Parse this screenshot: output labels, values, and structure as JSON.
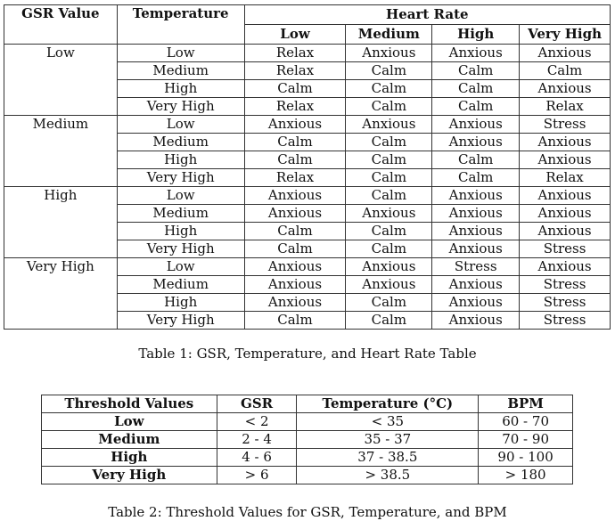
{
  "table1": {
    "headers": {
      "gsr": "GSR Value",
      "temperature": "Temperature",
      "heart_rate": "Heart Rate",
      "hr_levels": [
        "Low",
        "Medium",
        "High",
        "Very High"
      ]
    },
    "groups": [
      {
        "gsr": "Low",
        "rows": [
          {
            "temp": "Low",
            "values": [
              "Relax",
              "Anxious",
              "Anxious",
              "Anxious"
            ]
          },
          {
            "temp": "Medium",
            "values": [
              "Relax",
              "Calm",
              "Calm",
              "Calm"
            ]
          },
          {
            "temp": "High",
            "values": [
              "Calm",
              "Calm",
              "Calm",
              "Anxious"
            ]
          },
          {
            "temp": "Very High",
            "values": [
              "Relax",
              "Calm",
              "Calm",
              "Relax"
            ]
          }
        ]
      },
      {
        "gsr": "Medium",
        "rows": [
          {
            "temp": "Low",
            "values": [
              "Anxious",
              "Anxious",
              "Anxious",
              "Stress"
            ]
          },
          {
            "temp": "Medium",
            "values": [
              "Calm",
              "Calm",
              "Anxious",
              "Anxious"
            ]
          },
          {
            "temp": "High",
            "values": [
              "Calm",
              "Calm",
              "Calm",
              "Anxious"
            ]
          },
          {
            "temp": "Very High",
            "values": [
              "Relax",
              "Calm",
              "Calm",
              "Relax"
            ]
          }
        ]
      },
      {
        "gsr": "High",
        "rows": [
          {
            "temp": "Low",
            "values": [
              "Anxious",
              "Calm",
              "Anxious",
              "Anxious"
            ]
          },
          {
            "temp": "Medium",
            "values": [
              "Anxious",
              "Anxious",
              "Anxious",
              "Anxious"
            ]
          },
          {
            "temp": "High",
            "values": [
              "Calm",
              "Calm",
              "Anxious",
              "Anxious"
            ]
          },
          {
            "temp": "Very High",
            "values": [
              "Calm",
              "Calm",
              "Anxious",
              "Stress"
            ]
          }
        ]
      },
      {
        "gsr": "Very High",
        "rows": [
          {
            "temp": "Low",
            "values": [
              "Anxious",
              "Anxious",
              "Stress",
              "Anxious"
            ]
          },
          {
            "temp": "Medium",
            "values": [
              "Anxious",
              "Anxious",
              "Anxious",
              "Stress"
            ]
          },
          {
            "temp": "High",
            "values": [
              "Anxious",
              "Calm",
              "Anxious",
              "Stress"
            ]
          },
          {
            "temp": "Very High",
            "values": [
              "Calm",
              "Calm",
              "Anxious",
              "Stress"
            ]
          }
        ]
      }
    ],
    "caption": "Table 1: GSR, Temperature, and Heart Rate Table"
  },
  "table2": {
    "headers": [
      "Threshold Values",
      "GSR",
      "Temperature (°C)",
      "BPM"
    ],
    "rows": [
      {
        "label": "Low",
        "gsr": "< 2",
        "temp": "< 35",
        "bpm": "60 - 70"
      },
      {
        "label": "Medium",
        "gsr": "2 - 4",
        "temp": "35 - 37",
        "bpm": "70 - 90"
      },
      {
        "label": "High",
        "gsr": "4 - 6",
        "temp": "37 - 38.5",
        "bpm": "90 - 100"
      },
      {
        "label": "Very High",
        "gsr": "> 6",
        "temp": "> 38.5",
        "bpm": "> 180"
      }
    ],
    "caption": "Table 2: Threshold Values for GSR, Temperature, and BPM"
  }
}
